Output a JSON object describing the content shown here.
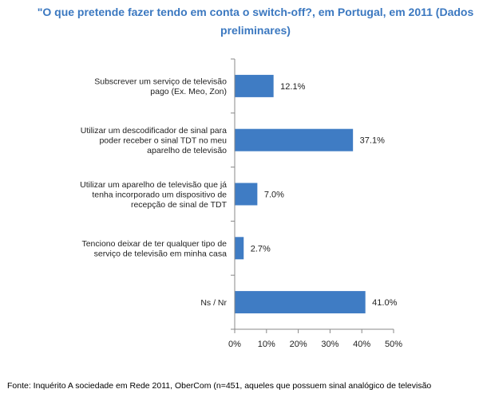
{
  "chart_data": {
    "type": "bar",
    "orientation": "horizontal",
    "title": "\"O que pretende fazer tendo em conta o switch-off?, em Portugal, em 2011 (Dados preliminares)",
    "categories": [
      [
        "Subscrever um serviço de televisão",
        "pago (Ex. Meo, Zon)"
      ],
      [
        "Utilizar um descodificador de sinal para",
        "poder receber o sinal TDT no meu",
        "aparelho de televisão"
      ],
      [
        "Utilizar um aparelho de televisão que já",
        "tenha incorporado um dispositivo de",
        "recepção de sinal de TDT"
      ],
      [
        "Tenciono deixar de ter qualquer tipo de",
        "serviço de televisão em minha casa"
      ],
      [
        "Ns / Nr"
      ]
    ],
    "values": [
      12.1,
      37.1,
      7.0,
      2.7,
      41.0
    ],
    "value_labels": [
      "12.1%",
      "37.1%",
      "7.0%",
      "2.7%",
      "41.0%"
    ],
    "xlim": [
      0,
      50
    ],
    "xticks": [
      0,
      10,
      20,
      30,
      40,
      50
    ],
    "xtick_labels": [
      "0%",
      "10%",
      "20%",
      "30%",
      "40%",
      "50%"
    ],
    "bar_color": "#3f7cc4",
    "axis_color": "#888888",
    "grid": false,
    "legend": false
  },
  "source_note": "Fonte: Inquérito A sociedade em Rede 2011, OberCom (n=451, aqueles que possuem sinal analógico de televisão"
}
